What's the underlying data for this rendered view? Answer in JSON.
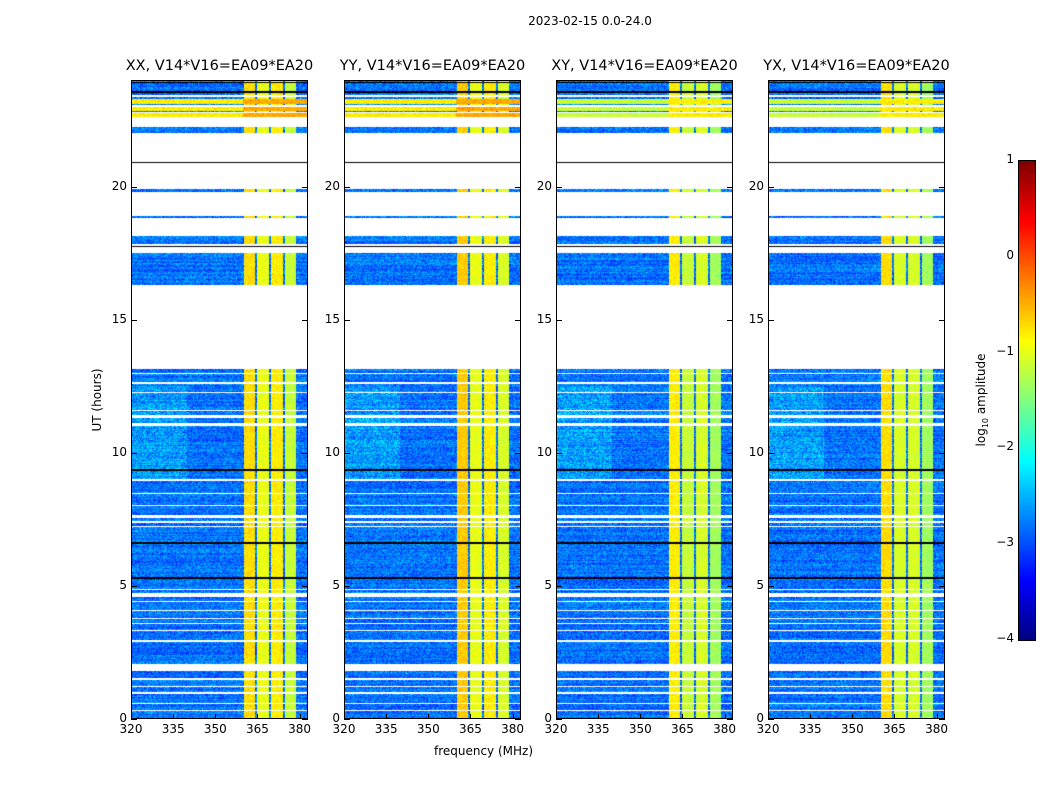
{
  "suptitle": "2023-02-15 0.0-24.0",
  "chart_data": {
    "type": "heatmap",
    "xlabel": "frequency (MHz)",
    "ylabel": "UT (hours)",
    "xlim": [
      320,
      383
    ],
    "ylim": [
      0,
      24
    ],
    "xticks": [
      "320",
      "335",
      "350",
      "365",
      "380"
    ],
    "xtick_values": [
      320,
      335,
      350,
      365,
      380
    ],
    "yticks": [
      "0",
      "5",
      "10",
      "15",
      "20"
    ],
    "ytick_values": [
      0,
      5,
      10,
      15,
      20
    ],
    "colorbar": {
      "label_prefix": "log",
      "label_sub": "10",
      "label_suffix": " amplitude",
      "range": [
        -4,
        1
      ],
      "ticks": [
        "1",
        "0",
        "−1",
        "−2",
        "−3",
        "−4"
      ],
      "tick_values": [
        1,
        0,
        -1,
        -2,
        -3,
        -4
      ],
      "colormap": "jet"
    },
    "panels": [
      {
        "title": "XX, V14*V16=EA09*EA20",
        "band_levels": [
          -0.6,
          -0.9,
          -0.7,
          -1.1
        ]
      },
      {
        "title": "YY, V14*V16=EA09*EA20",
        "band_levels": [
          -0.5,
          -0.9,
          -0.7,
          -1.0
        ]
      },
      {
        "title": "XY, V14*V16=EA09*EA20",
        "band_levels": [
          -0.7,
          -1.1,
          -1.0,
          -1.3
        ]
      },
      {
        "title": "YX, V14*V16=EA09*EA20",
        "band_levels": [
          -0.6,
          -1.0,
          -1.0,
          -1.3
        ]
      }
    ],
    "band_edges_mhz": [
      360,
      364.5,
      369.5,
      374.5,
      379
    ],
    "background_level": -3.0,
    "flagged_ut_ranges": [
      [
        0.3,
        0.35
      ],
      [
        0.55,
        0.6
      ],
      [
        0.95,
        1.0
      ],
      [
        1.2,
        1.25
      ],
      [
        1.45,
        1.55
      ],
      [
        1.8,
        2.05
      ],
      [
        2.9,
        2.95
      ],
      [
        3.3,
        3.35
      ],
      [
        3.55,
        3.6
      ],
      [
        3.75,
        3.8
      ],
      [
        4.05,
        4.1
      ],
      [
        4.4,
        4.45
      ],
      [
        4.6,
        4.75
      ],
      [
        4.85,
        4.9
      ],
      [
        7.2,
        7.25
      ],
      [
        7.35,
        7.45
      ],
      [
        7.55,
        7.65
      ],
      [
        8.0,
        8.05
      ],
      [
        8.45,
        8.5
      ],
      [
        8.95,
        9.0
      ],
      [
        11.0,
        11.1
      ],
      [
        11.3,
        11.4
      ],
      [
        11.55,
        11.6
      ],
      [
        12.25,
        12.3
      ],
      [
        12.6,
        12.65
      ],
      [
        12.95,
        13.0
      ],
      [
        13.15,
        16.3
      ],
      [
        17.5,
        17.85
      ],
      [
        18.15,
        18.8
      ],
      [
        18.9,
        19.8
      ],
      [
        19.9,
        22.0
      ],
      [
        22.25,
        22.6
      ],
      [
        22.75,
        22.8
      ],
      [
        23.0,
        23.05
      ],
      [
        23.35,
        23.45
      ]
    ],
    "hot_ut_ranges": [
      [
        22.6,
        22.75
      ],
      [
        22.85,
        23.0
      ],
      [
        23.1,
        23.3
      ],
      [
        23.5,
        23.6
      ]
    ],
    "black_line_ut": [
      5.3,
      6.6,
      9.35,
      17.75,
      20.9,
      23.55,
      23.9
    ]
  }
}
